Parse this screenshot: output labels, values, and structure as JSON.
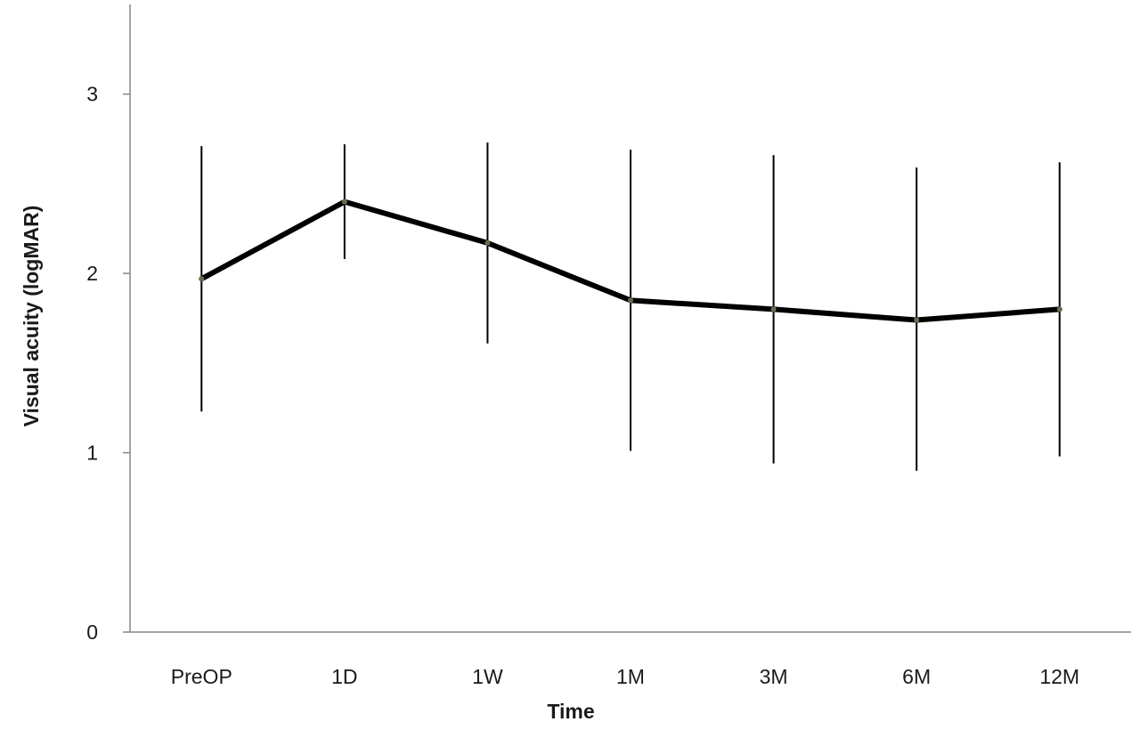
{
  "chart_data": {
    "type": "line",
    "title": "",
    "xlabel": "Time",
    "ylabel": "Visual acuity  (logMAR)",
    "categories": [
      "PreOP",
      "1D",
      "1W",
      "1M",
      "3M",
      "6M",
      "12M"
    ],
    "series": [
      {
        "values": [
          1.97,
          2.4,
          2.17,
          1.85,
          1.8,
          1.74,
          1.8
        ],
        "error_low": [
          1.23,
          2.08,
          1.61,
          1.01,
          0.94,
          0.9,
          0.98
        ],
        "error_high": [
          2.71,
          2.72,
          2.73,
          2.69,
          2.66,
          2.59,
          2.62
        ],
        "color": "#000000"
      }
    ],
    "ylim": [
      0,
      3.5
    ],
    "yticks": [
      0,
      1,
      2,
      3
    ],
    "grid": false,
    "legend": "none"
  }
}
